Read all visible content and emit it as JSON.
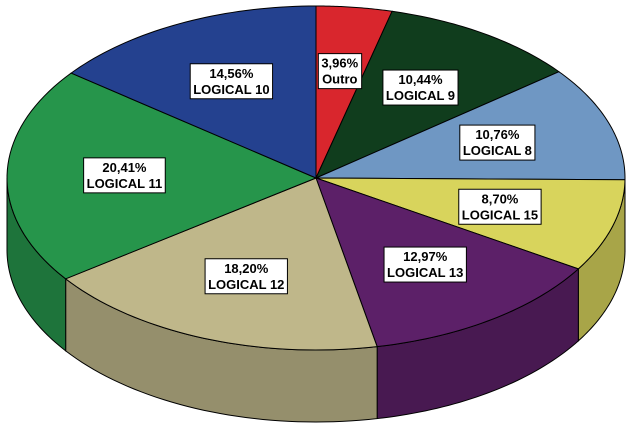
{
  "chart_data": {
    "type": "pie",
    "categories": [
      "Outro",
      "LOGICAL 9",
      "LOGICAL 8",
      "LOGICAL 15",
      "LOGICAL 13",
      "LOGICAL 12",
      "LOGICAL 11",
      "LOGICAL 10"
    ],
    "values": [
      3.96,
      10.44,
      10.76,
      8.7,
      12.97,
      18.2,
      20.41,
      14.56
    ],
    "value_labels": [
      "3,96%",
      "10,44%",
      "10,76%",
      "8,70%",
      "12,97%",
      "18,20%",
      "20,41%",
      "14,56%"
    ],
    "colors": [
      "#d9262d",
      "#103d1d",
      "#6f97c3",
      "#d8d45c",
      "#5c2068",
      "#bfb78a",
      "#26954b",
      "#24418f"
    ]
  }
}
